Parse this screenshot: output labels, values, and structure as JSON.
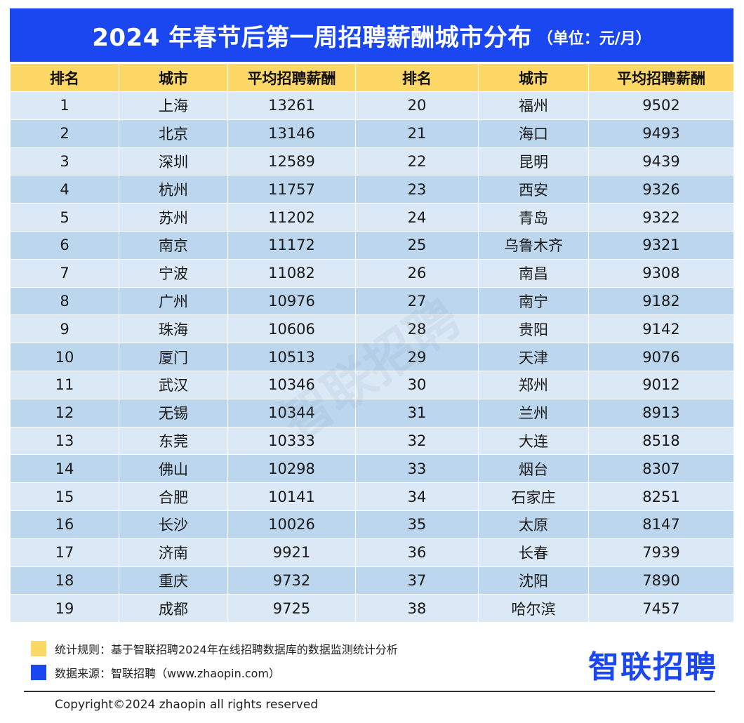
{
  "title": {
    "main": "2024 年春节后第一周招聘薪酬城市分布",
    "unit": "（单位：元/月）"
  },
  "table": {
    "headers": [
      "排名",
      "城市",
      "平均招聘薪酬",
      "排名",
      "城市",
      "平均招聘薪酬"
    ],
    "rows": [
      [
        "1",
        "上海",
        "13261",
        "20",
        "福州",
        "9502"
      ],
      [
        "2",
        "北京",
        "13146",
        "21",
        "海口",
        "9493"
      ],
      [
        "3",
        "深圳",
        "12589",
        "22",
        "昆明",
        "9439"
      ],
      [
        "4",
        "杭州",
        "11757",
        "23",
        "西安",
        "9326"
      ],
      [
        "5",
        "苏州",
        "11202",
        "24",
        "青岛",
        "9322"
      ],
      [
        "6",
        "南京",
        "11172",
        "25",
        "乌鲁木齐",
        "9321"
      ],
      [
        "7",
        "宁波",
        "11082",
        "26",
        "南昌",
        "9308"
      ],
      [
        "8",
        "广州",
        "10976",
        "27",
        "南宁",
        "9182"
      ],
      [
        "9",
        "珠海",
        "10606",
        "28",
        "贵阳",
        "9142"
      ],
      [
        "10",
        "厦门",
        "10513",
        "29",
        "天津",
        "9076"
      ],
      [
        "11",
        "武汉",
        "10346",
        "30",
        "郑州",
        "9012"
      ],
      [
        "12",
        "无锡",
        "10344",
        "31",
        "兰州",
        "8913"
      ],
      [
        "13",
        "东莞",
        "10333",
        "32",
        "大连",
        "8518"
      ],
      [
        "14",
        "佛山",
        "10298",
        "33",
        "烟台",
        "8307"
      ],
      [
        "15",
        "合肥",
        "10141",
        "34",
        "石家庄",
        "8251"
      ],
      [
        "16",
        "长沙",
        "10026",
        "35",
        "太原",
        "8147"
      ],
      [
        "17",
        "济南",
        "9921",
        "36",
        "长春",
        "7939"
      ],
      [
        "18",
        "重庆",
        "9732",
        "37",
        "沈阳",
        "7890"
      ],
      [
        "19",
        "成都",
        "9725",
        "38",
        "哈尔滨",
        "7457"
      ]
    ]
  },
  "watermark": "智联招聘",
  "notes": {
    "rule": "统计规则：基于智联招聘2024年在线招聘数据库的数据监测统计分析",
    "source": "数据来源：智联招聘（www.zhaopin.com）"
  },
  "logo": "智联招聘",
  "copyright": "Copyright©2024 zhaopin all rights reserved",
  "colors": {
    "brand_blue": "#1a47f0",
    "header_yellow": "#fdd866",
    "row_light": "#dbe9f7",
    "row_dark": "#bcd6ee"
  }
}
